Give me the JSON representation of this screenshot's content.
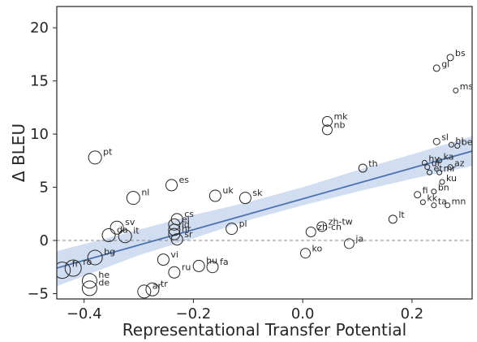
{
  "chart_data": {
    "type": "scatter",
    "title": "",
    "xlabel": "Representational Transfer Potential",
    "ylabel": "Δ BLEU",
    "xlim": [
      -0.45,
      0.31
    ],
    "ylim": [
      -5.5,
      22
    ],
    "xticks": [
      -0.4,
      -0.2,
      0.0,
      0.2
    ],
    "xtick_labels": [
      "−0.4",
      "−0.2",
      "0.0",
      "0.2"
    ],
    "yticks": [
      -5,
      0,
      5,
      10,
      15,
      20
    ],
    "ytick_labels": [
      "−5",
      "0",
      "5",
      "10",
      "15",
      "20"
    ],
    "grid": false,
    "zero_line": 0,
    "regression": {
      "x": [
        -0.45,
        0.31
      ],
      "y": [
        -2.6,
        8.4
      ]
    },
    "confidence_band": {
      "x": [
        -0.45,
        -0.3,
        -0.2,
        -0.1,
        0.0,
        0.1,
        0.2,
        0.31
      ],
      "lower": [
        -4.3,
        -1.4,
        0.2,
        1.9,
        3.3,
        4.6,
        5.8,
        7.0
      ],
      "upper": [
        -1.0,
        1.0,
        2.4,
        3.6,
        5.0,
        6.6,
        8.1,
        9.8
      ]
    },
    "colors": {
      "line": "#4c72b0",
      "band": "#c6d4ec",
      "points": "#262626",
      "zero_line": "#888888"
    },
    "points": [
      {
        "label": "fr",
        "x": -0.44,
        "y": -2.8,
        "size": 10
      },
      {
        "label": "ro",
        "x": -0.42,
        "y": -2.6,
        "size": 10
      },
      {
        "label": "de",
        "x": -0.39,
        "y": -4.5,
        "size": 9
      },
      {
        "label": "he",
        "x": -0.39,
        "y": -3.8,
        "size": 9
      },
      {
        "label": "bg",
        "x": -0.38,
        "y": -1.6,
        "size": 9
      },
      {
        "label": "pt",
        "x": -0.38,
        "y": 7.8,
        "size": 8
      },
      {
        "label": "da",
        "x": -0.355,
        "y": 0.5,
        "size": 8
      },
      {
        "label": "sv",
        "x": -0.34,
        "y": 1.2,
        "size": 8
      },
      {
        "label": "it",
        "x": -0.325,
        "y": 0.4,
        "size": 8
      },
      {
        "label": "nl",
        "x": -0.31,
        "y": 4.0,
        "size": 8
      },
      {
        "label": "ar",
        "x": -0.29,
        "y": -4.8,
        "size": 8
      },
      {
        "label": "tr",
        "x": -0.275,
        "y": -4.6,
        "size": 8
      },
      {
        "label": "vi",
        "x": -0.255,
        "y": -1.8,
        "size": 7
      },
      {
        "label": "ru",
        "x": -0.235,
        "y": -3.0,
        "size": 7
      },
      {
        "label": "es",
        "x": -0.24,
        "y": 5.2,
        "size": 7
      },
      {
        "label": "el",
        "x": -0.235,
        "y": 1.5,
        "size": 7
      },
      {
        "label": "cs",
        "x": -0.23,
        "y": 2.0,
        "size": 7
      },
      {
        "label": "id",
        "x": -0.235,
        "y": 1.0,
        "size": 7
      },
      {
        "label": "hr",
        "x": -0.235,
        "y": 0.6,
        "size": 7
      },
      {
        "label": "sr",
        "x": -0.23,
        "y": 0.1,
        "size": 7
      },
      {
        "label": "hu",
        "x": -0.19,
        "y": -2.4,
        "size": 7
      },
      {
        "label": "fa",
        "x": -0.165,
        "y": -2.5,
        "size": 7
      },
      {
        "label": "uk",
        "x": -0.16,
        "y": 4.2,
        "size": 7
      },
      {
        "label": "pl",
        "x": -0.13,
        "y": 1.1,
        "size": 7
      },
      {
        "label": "sk",
        "x": -0.105,
        "y": 4.0,
        "size": 7
      },
      {
        "label": "ko",
        "x": 0.005,
        "y": -1.2,
        "size": 6
      },
      {
        "label": "zh-cn",
        "x": 0.015,
        "y": 0.8,
        "size": 6
      },
      {
        "label": "zh-tw",
        "x": 0.035,
        "y": 1.3,
        "size": 6
      },
      {
        "label": "mk",
        "x": 0.045,
        "y": 11.2,
        "size": 6
      },
      {
        "label": "nb",
        "x": 0.045,
        "y": 10.4,
        "size": 6
      },
      {
        "label": "ja",
        "x": 0.085,
        "y": -0.3,
        "size": 6
      },
      {
        "label": "th",
        "x": 0.11,
        "y": 6.8,
        "size": 5
      },
      {
        "label": "lt",
        "x": 0.165,
        "y": 2.0,
        "size": 5
      },
      {
        "label": "fi",
        "x": 0.21,
        "y": 4.3,
        "size": 4
      },
      {
        "label": "kk",
        "x": 0.22,
        "y": 3.6,
        "size": 3
      },
      {
        "label": "hy",
        "x": 0.223,
        "y": 7.3,
        "size": 3
      },
      {
        "label": "ur",
        "x": 0.228,
        "y": 6.9,
        "size": 3
      },
      {
        "label": "et",
        "x": 0.232,
        "y": 6.4,
        "size": 3
      },
      {
        "label": "bn",
        "x": 0.24,
        "y": 4.6,
        "size": 3
      },
      {
        "label": "ta",
        "x": 0.24,
        "y": 3.3,
        "size": 3
      },
      {
        "label": "sl",
        "x": 0.245,
        "y": 9.3,
        "size": 4
      },
      {
        "label": "gl",
        "x": 0.245,
        "y": 16.2,
        "size": 4
      },
      {
        "label": "ka",
        "x": 0.25,
        "y": 7.5,
        "size": 3
      },
      {
        "label": "mr",
        "x": 0.25,
        "y": 6.4,
        "size": 3
      },
      {
        "label": "ku",
        "x": 0.255,
        "y": 5.5,
        "size": 3
      },
      {
        "label": "mn",
        "x": 0.265,
        "y": 3.3,
        "size": 3
      },
      {
        "label": "az",
        "x": 0.27,
        "y": 6.9,
        "size": 3
      },
      {
        "label": "bs",
        "x": 0.27,
        "y": 17.2,
        "size": 4
      },
      {
        "label": "hi",
        "x": 0.272,
        "y": 9.0,
        "size": 3
      },
      {
        "label": "ms",
        "x": 0.28,
        "y": 14.1,
        "size": 3
      },
      {
        "label": "be",
        "x": 0.283,
        "y": 8.9,
        "size": 3
      }
    ]
  }
}
